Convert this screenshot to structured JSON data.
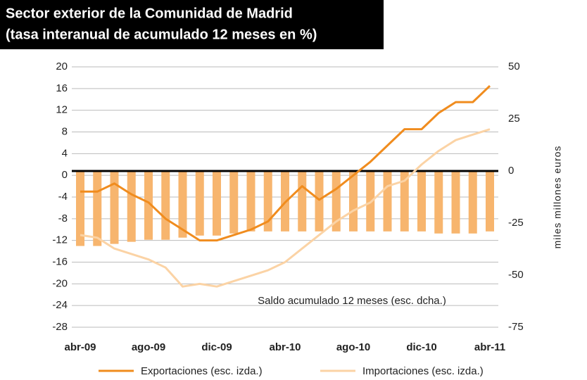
{
  "chart_data": {
    "type": "bar_line",
    "title": "Sector exterior de la Comunidad de Madrid",
    "subtitle": "(tasa interanual de acumulado 12 meses en %)",
    "y2_label": "miles millones euros",
    "annotation": "Saldo acumulado 12 meses (esc. dcha.)",
    "categories": [
      "abr-09",
      null,
      null,
      null,
      "ago-09",
      null,
      null,
      null,
      "dic-09",
      null,
      null,
      null,
      "abr-10",
      null,
      null,
      null,
      "ago-10",
      null,
      null,
      null,
      "dic-10",
      null,
      null,
      null,
      "abr-11"
    ],
    "ylim": [
      -28,
      20
    ],
    "yticks": [
      20,
      16,
      12,
      8,
      4,
      0,
      -4,
      -8,
      -12,
      -16,
      -20,
      -24,
      -28
    ],
    "y2lim": [
      -75,
      50
    ],
    "y2ticks": [
      50,
      25,
      0,
      -25,
      -50,
      -75
    ],
    "grid": true,
    "series": [
      {
        "name": "Saldo",
        "type": "bar",
        "axis": "y2",
        "color": "#f7b56e",
        "values": [
          -36,
          -36,
          -35,
          -34,
          -33,
          -33,
          -32,
          -31,
          -31,
          -30,
          -29,
          -29,
          -29,
          -29,
          -29,
          -29,
          -29,
          -29,
          -29,
          -29,
          -29,
          -30,
          -30,
          -30,
          -29
        ]
      },
      {
        "name": "Exportaciones (esc. izda.)",
        "type": "line",
        "color": "#f08c1e",
        "values": [
          -3,
          -3,
          -1.5,
          -3.5,
          -5,
          -8,
          -10,
          -12,
          -12,
          -11,
          -10,
          -8.5,
          -5,
          -2,
          -4.5,
          -2.5,
          0,
          2.5,
          5.5,
          8.5,
          8.5,
          11.5,
          13.5,
          13.5,
          16.5
        ]
      },
      {
        "name": "Importaciones (esc. izda.)",
        "type": "line",
        "color": "#fbd3a5",
        "values": [
          -11,
          -11.5,
          -13.5,
          -14.5,
          -15.5,
          -17,
          -20.5,
          -20,
          -20.5,
          -19.5,
          -18.5,
          -17.5,
          -16,
          -13.5,
          -11,
          -8.5,
          -6.5,
          -5,
          -2,
          -1,
          2,
          4.5,
          6.5,
          7.5,
          8.5
        ]
      }
    ]
  }
}
